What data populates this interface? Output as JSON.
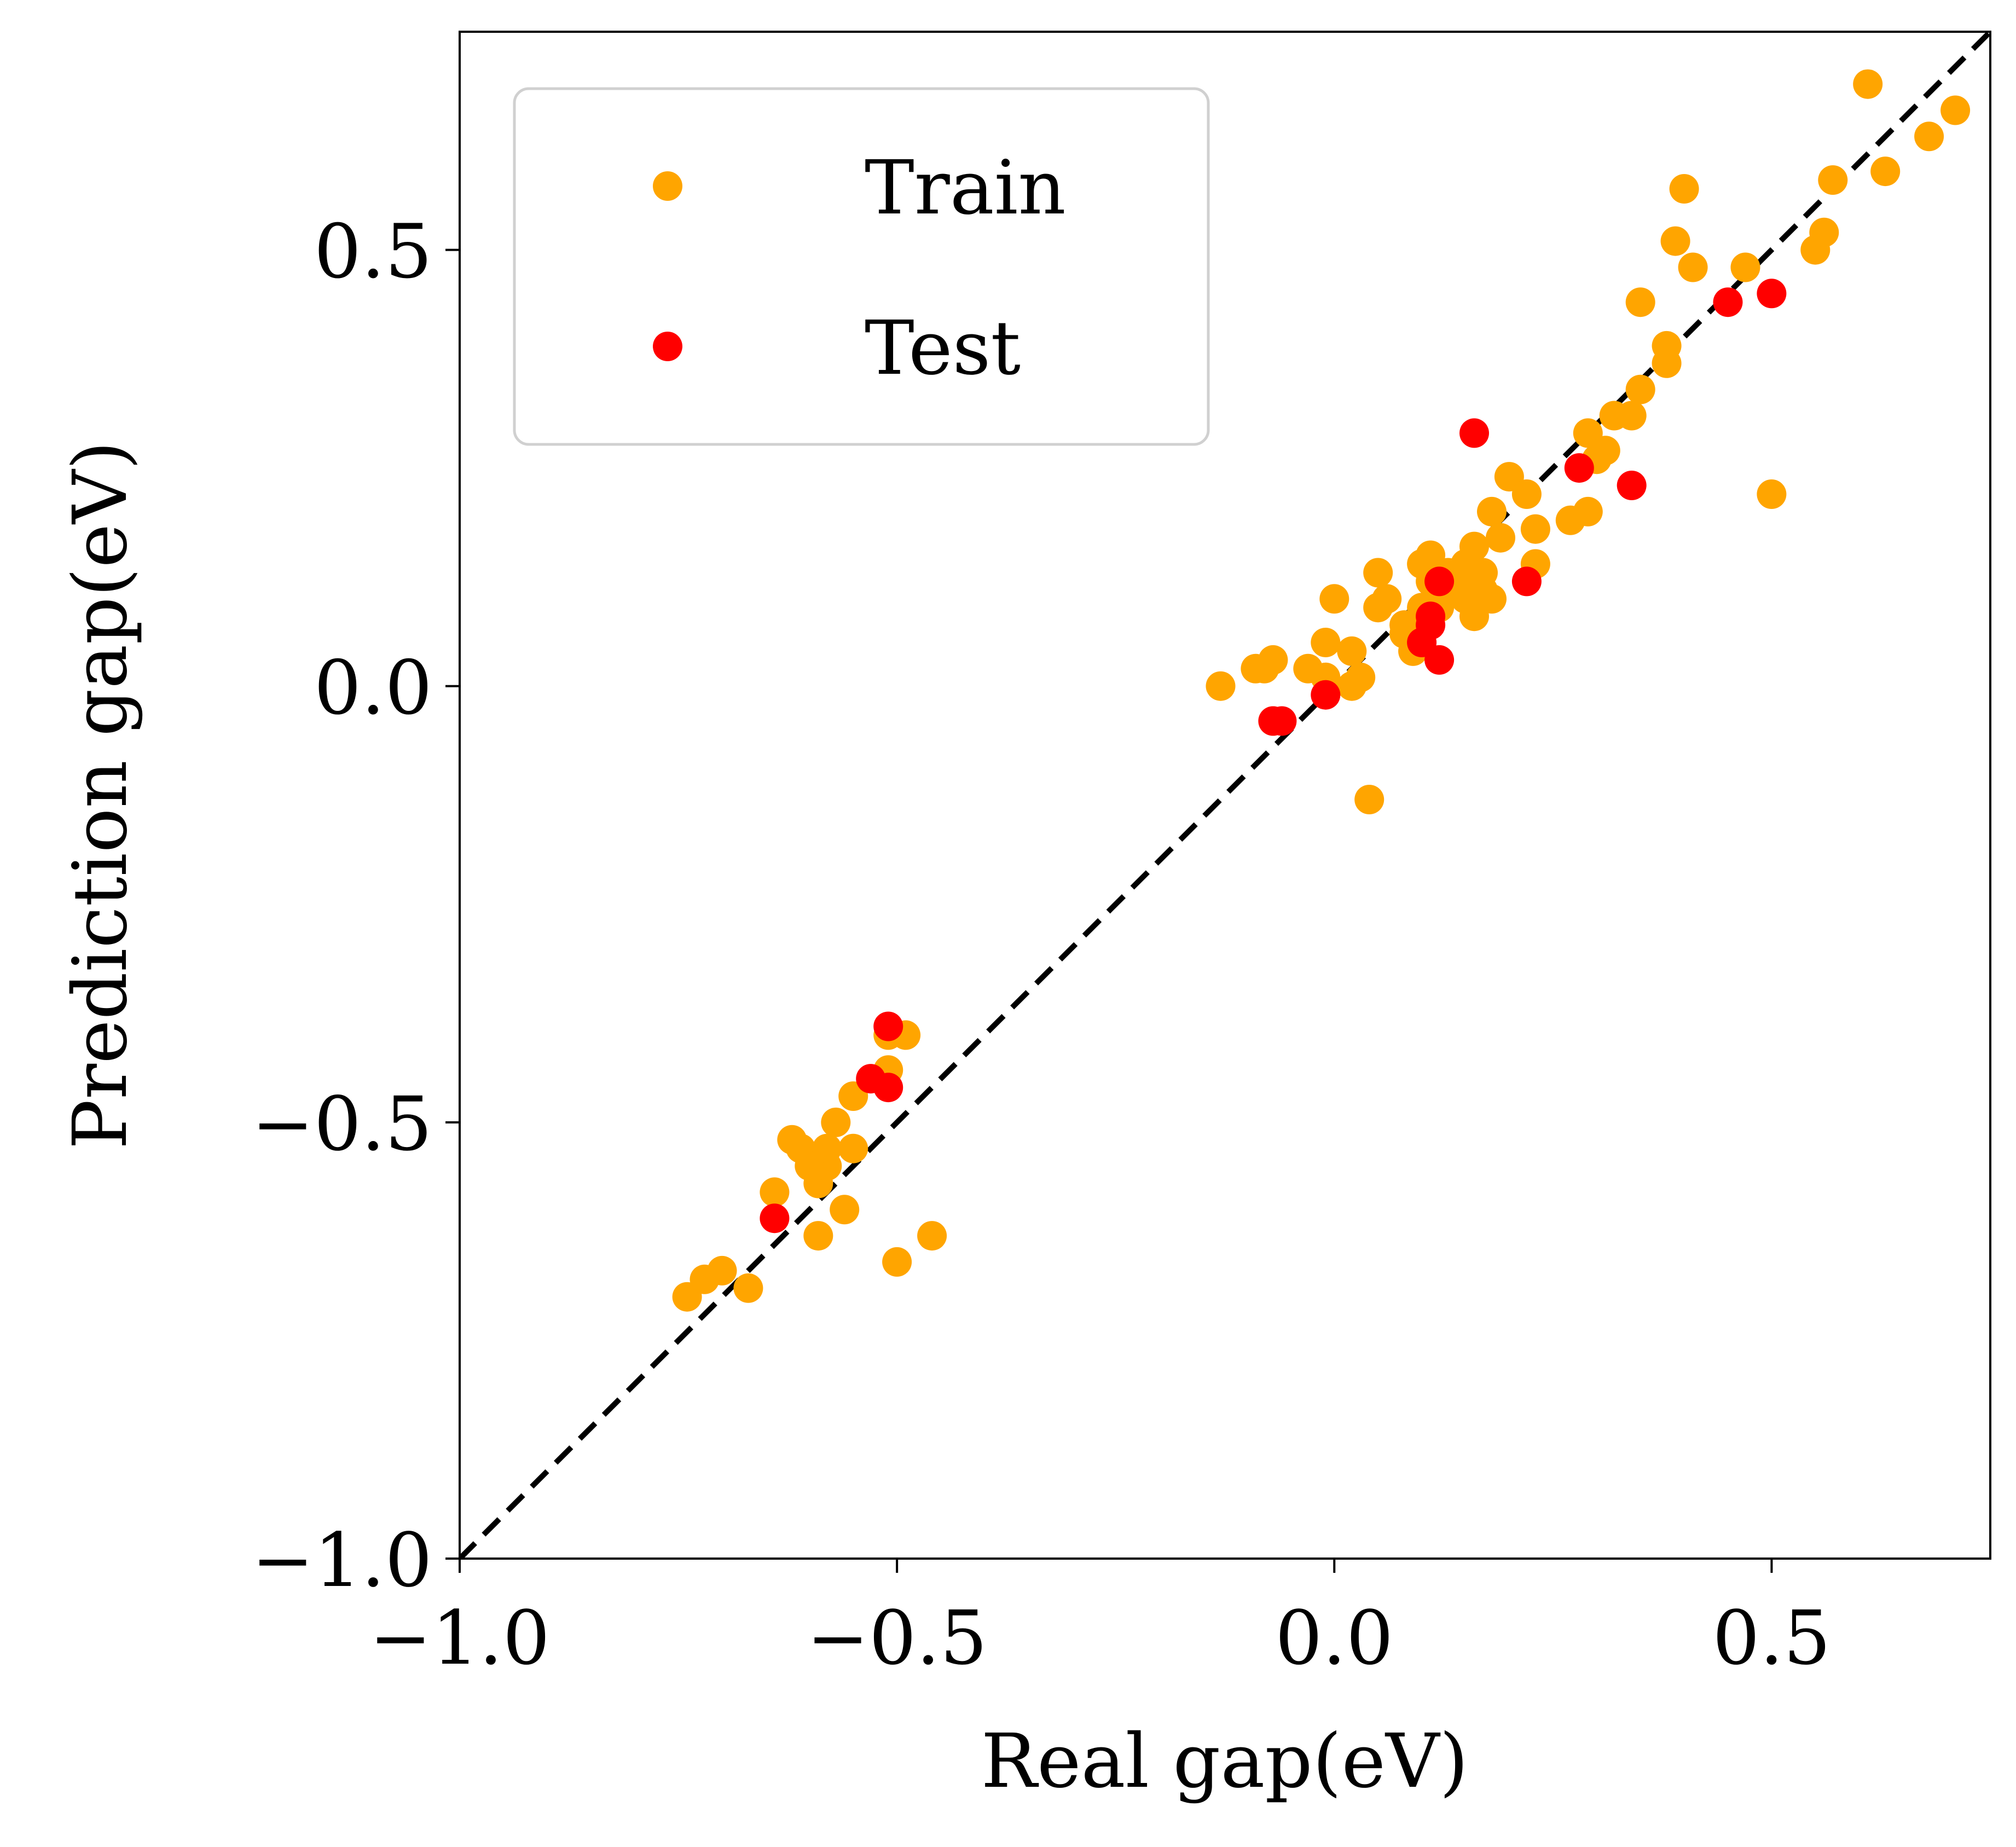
{
  "chart_data": {
    "type": "scatter",
    "title": "",
    "xlabel": "Real gap(eV)",
    "ylabel": "Prediction gap(eV)",
    "xlim": [
      -1.0,
      0.75
    ],
    "ylim": [
      -1.0,
      0.75
    ],
    "x_ticks": [
      -1.0,
      -0.5,
      0.0,
      0.5
    ],
    "y_ticks": [
      -1.0,
      -0.5,
      0.0,
      0.5
    ],
    "x_tick_labels": [
      "−1.0",
      "−0.5",
      "0.0",
      "0.5"
    ],
    "y_tick_labels": [
      "−1.0",
      "−0.5",
      "0.0",
      "0.5"
    ],
    "grid": false,
    "legend_position": "top-left",
    "reference_line": {
      "style": "dashed",
      "color": "#000000",
      "from": [
        -1.0,
        -1.0
      ],
      "to": [
        0.75,
        0.75
      ]
    },
    "series": [
      {
        "name": "Train",
        "color": "#FFA500",
        "points": [
          [
            -0.74,
            -0.7
          ],
          [
            -0.72,
            -0.68
          ],
          [
            -0.7,
            -0.67
          ],
          [
            -0.67,
            -0.69
          ],
          [
            -0.64,
            -0.58
          ],
          [
            -0.62,
            -0.52
          ],
          [
            -0.61,
            -0.53
          ],
          [
            -0.6,
            -0.55
          ],
          [
            -0.59,
            -0.57
          ],
          [
            -0.59,
            -0.63
          ],
          [
            -0.58,
            -0.55
          ],
          [
            -0.58,
            -0.53
          ],
          [
            -0.57,
            -0.5
          ],
          [
            -0.56,
            -0.6
          ],
          [
            -0.55,
            -0.53
          ],
          [
            -0.55,
            -0.47
          ],
          [
            -0.51,
            -0.4
          ],
          [
            -0.51,
            -0.44
          ],
          [
            -0.5,
            -0.66
          ],
          [
            -0.49,
            -0.4
          ],
          [
            -0.46,
            -0.63
          ],
          [
            -0.13,
            0.0
          ],
          [
            -0.09,
            0.02
          ],
          [
            -0.08,
            0.02
          ],
          [
            -0.07,
            0.03
          ],
          [
            -0.07,
            -0.04
          ],
          [
            -0.03,
            0.02
          ],
          [
            -0.01,
            0.05
          ],
          [
            -0.01,
            0.01
          ],
          [
            0.0,
            0.1
          ],
          [
            0.02,
            0.0
          ],
          [
            0.02,
            0.04
          ],
          [
            0.03,
            0.01
          ],
          [
            0.04,
            -0.13
          ],
          [
            0.05,
            0.09
          ],
          [
            0.05,
            0.13
          ],
          [
            0.06,
            0.1
          ],
          [
            0.08,
            0.07
          ],
          [
            0.08,
            0.06
          ],
          [
            0.09,
            0.05
          ],
          [
            0.09,
            0.04
          ],
          [
            0.1,
            0.09
          ],
          [
            0.1,
            0.07
          ],
          [
            0.1,
            0.14
          ],
          [
            0.11,
            0.12
          ],
          [
            0.11,
            0.15
          ],
          [
            0.12,
            0.09
          ],
          [
            0.13,
            0.13
          ],
          [
            0.14,
            0.11
          ],
          [
            0.14,
            0.12
          ],
          [
            0.15,
            0.1
          ],
          [
            0.15,
            0.14
          ],
          [
            0.16,
            0.08
          ],
          [
            0.16,
            0.16
          ],
          [
            0.17,
            0.11
          ],
          [
            0.17,
            0.13
          ],
          [
            0.18,
            0.1
          ],
          [
            0.18,
            0.2
          ],
          [
            0.19,
            0.17
          ],
          [
            0.2,
            0.24
          ],
          [
            0.22,
            0.22
          ],
          [
            0.23,
            0.18
          ],
          [
            0.23,
            0.14
          ],
          [
            0.27,
            0.19
          ],
          [
            0.29,
            0.2
          ],
          [
            0.29,
            0.29
          ],
          [
            0.3,
            0.26
          ],
          [
            0.31,
            0.27
          ],
          [
            0.32,
            0.31
          ],
          [
            0.34,
            0.31
          ],
          [
            0.35,
            0.34
          ],
          [
            0.35,
            0.44
          ],
          [
            0.38,
            0.39
          ],
          [
            0.38,
            0.37
          ],
          [
            0.39,
            0.51
          ],
          [
            0.4,
            0.57
          ],
          [
            0.41,
            0.48
          ],
          [
            0.47,
            0.48
          ],
          [
            0.5,
            0.22
          ],
          [
            0.55,
            0.5
          ],
          [
            0.56,
            0.52
          ],
          [
            0.57,
            0.58
          ],
          [
            0.61,
            0.69
          ],
          [
            0.63,
            0.59
          ],
          [
            0.68,
            0.63
          ],
          [
            0.71,
            0.66
          ]
        ]
      },
      {
        "name": "Test",
        "color": "#FF0000",
        "points": [
          [
            -0.64,
            -0.61
          ],
          [
            -0.53,
            -0.45
          ],
          [
            -0.51,
            -0.46
          ],
          [
            -0.51,
            -0.39
          ],
          [
            -0.07,
            -0.04
          ],
          [
            -0.06,
            -0.04
          ],
          [
            -0.01,
            -0.01
          ],
          [
            0.1,
            0.05
          ],
          [
            0.11,
            0.07
          ],
          [
            0.11,
            0.08
          ],
          [
            0.12,
            0.03
          ],
          [
            0.12,
            0.12
          ],
          [
            0.16,
            0.29
          ],
          [
            0.22,
            0.12
          ],
          [
            0.28,
            0.25
          ],
          [
            0.34,
            0.23
          ],
          [
            0.45,
            0.44
          ],
          [
            0.5,
            0.45
          ]
        ]
      }
    ]
  }
}
